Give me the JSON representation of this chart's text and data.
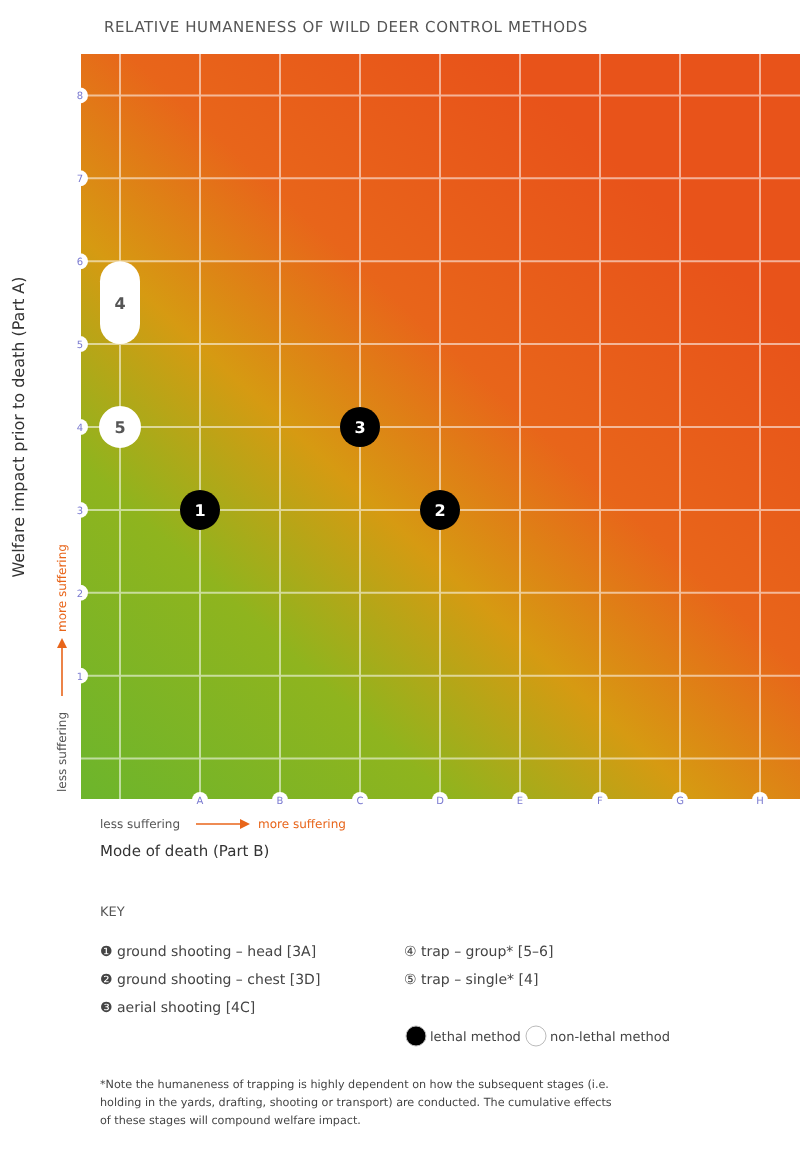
{
  "chart_data": {
    "type": "scatter",
    "title": "RELATIVE HUMANENESS OF WILD DEER CONTROL METHODS",
    "xlabel": "Mode of death (Part B)",
    "ylabel": "Welfare impact prior to death (Part A)",
    "categories": [
      null,
      "A",
      "B",
      "C",
      "D",
      "E",
      "F",
      "G",
      "H"
    ],
    "ylim": [
      -0.5,
      8.5
    ],
    "yticks": [
      {
        "value": 0,
        "label": null
      },
      1,
      2,
      3,
      4,
      5,
      6,
      7,
      8
    ],
    "grid": true,
    "legend": "bottom",
    "series": [
      {
        "name": "lethal method",
        "color": "#000000",
        "values": [
          null,
          3,
          null,
          4,
          3,
          null,
          null,
          null,
          null
        ]
      },
      {
        "name": "non-lethal method",
        "color": "#ffffff",
        "values": [
          4,
          null,
          null,
          null,
          null,
          null,
          null,
          null,
          null
        ]
      },
      {
        "type": "bar",
        "color": "#ffffff",
        "values": [
          1,
          null,
          null,
          null,
          null,
          null,
          null,
          null,
          null
        ],
        "base": [
          5,
          null,
          null,
          null,
          null,
          null,
          null,
          null,
          null
        ]
      }
    ],
    "annotations": [
      "less suffering",
      "more suffering",
      "less suffering",
      "more suffering",
      "KEY",
      "❶ ground shooting – head [3A]",
      "❷ ground shooting – chest [3D]",
      "❸ aerial shooting [4C]",
      "④ trap – group* [5–6]",
      "⑤ trap – single* [4]",
      "*Note the humaneness of trapping is highly dependent on how the subsequent stages (i.e. holding in the yards, drafting, shooting or transport) are conducted. The cumulative effects of these stages will compound welfare impact.",
      {
        "text": "1",
        "x": "A",
        "y": 3
      },
      {
        "text": "2",
        "x": "D",
        "y": 3
      },
      {
        "text": "3",
        "x": "C",
        "y": 4
      },
      {
        "text": "4",
        "y": 6
      },
      {
        "text": "5",
        "y": 4
      }
    ]
  }
}
